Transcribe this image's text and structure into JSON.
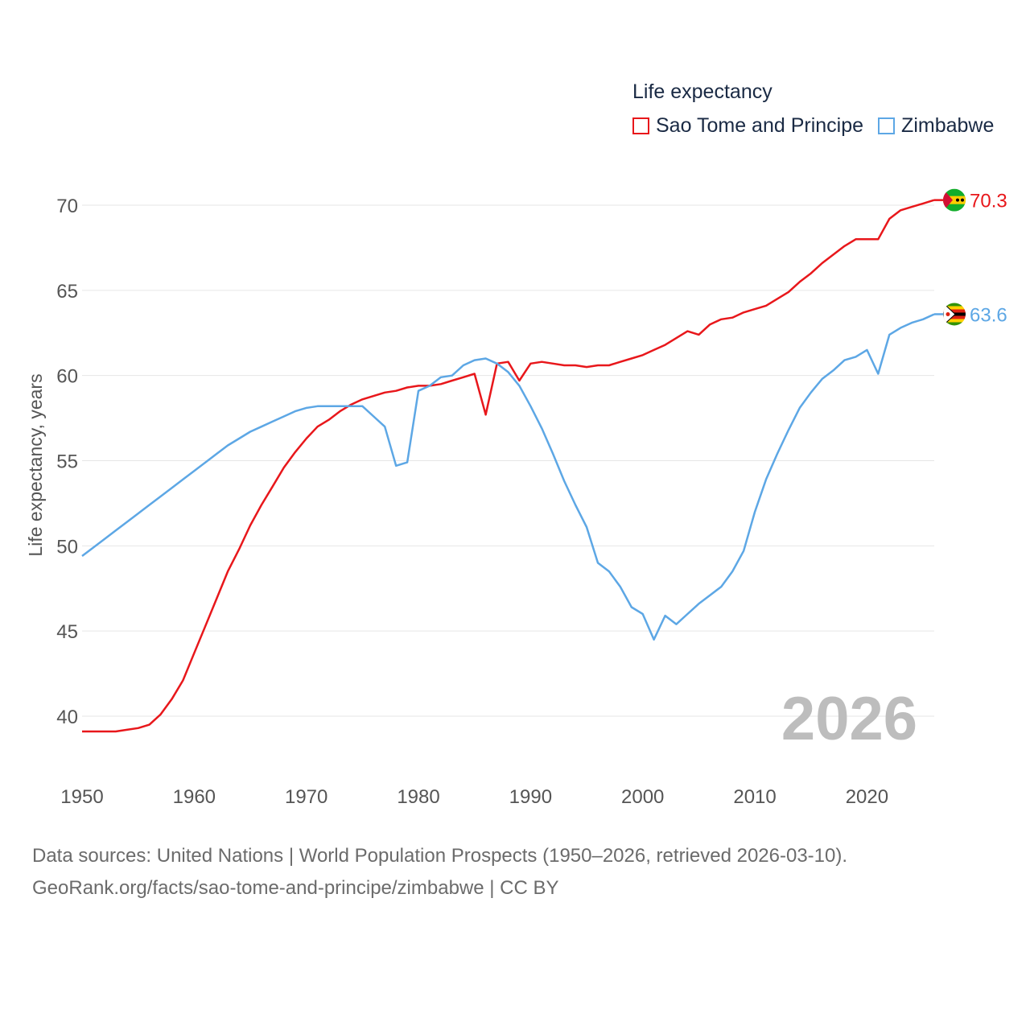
{
  "legend": {
    "title": "Life expectancy",
    "items": [
      {
        "label": "Sao Tome and Principe",
        "color": "#e8171b"
      },
      {
        "label": "Zimbabwe",
        "color": "#5da7e5"
      }
    ]
  },
  "source": {
    "line1": "Data sources: United Nations | World Population Prospects (1950–2026, retrieved 2026-03-10).",
    "line2": "GeoRank.org/facts/sao-tome-and-principe/zimbabwe | CC BY"
  },
  "chart_data": {
    "type": "line",
    "title": "Life expectancy",
    "xlabel": "",
    "ylabel": "Life expectancy, years",
    "year_label": "2026",
    "xlim": [
      1950,
      2026
    ],
    "ylim": [
      37.5,
      72
    ],
    "x_ticks": [
      1950,
      1960,
      1970,
      1980,
      1990,
      2000,
      2010,
      2020
    ],
    "y_ticks": [
      40,
      45,
      50,
      55,
      60,
      65,
      70
    ],
    "grid": true,
    "series": [
      {
        "name": "Sao Tome and Principe",
        "color": "#e8171b",
        "end_label": "70.3",
        "x": [
          1950,
          1951,
          1952,
          1953,
          1954,
          1955,
          1956,
          1957,
          1958,
          1959,
          1960,
          1961,
          1962,
          1963,
          1964,
          1965,
          1966,
          1967,
          1968,
          1969,
          1970,
          1971,
          1972,
          1973,
          1974,
          1975,
          1976,
          1977,
          1978,
          1979,
          1980,
          1981,
          1982,
          1983,
          1984,
          1985,
          1986,
          1987,
          1988,
          1989,
          1990,
          1991,
          1992,
          1993,
          1994,
          1995,
          1996,
          1997,
          1998,
          1999,
          2000,
          2001,
          2002,
          2003,
          2004,
          2005,
          2006,
          2007,
          2008,
          2009,
          2010,
          2011,
          2012,
          2013,
          2014,
          2015,
          2016,
          2017,
          2018,
          2019,
          2020,
          2021,
          2022,
          2023,
          2024,
          2025,
          2026
        ],
        "values": [
          39.1,
          39.1,
          39.1,
          39.1,
          39.2,
          39.3,
          39.5,
          40.1,
          41.0,
          42.1,
          43.7,
          45.3,
          46.9,
          48.5,
          49.8,
          51.2,
          52.4,
          53.5,
          54.6,
          55.5,
          56.3,
          57.0,
          57.4,
          57.9,
          58.3,
          58.6,
          58.8,
          59.0,
          59.1,
          59.3,
          59.4,
          59.4,
          59.5,
          59.7,
          59.9,
          60.1,
          57.7,
          60.7,
          60.8,
          59.7,
          60.7,
          60.8,
          60.7,
          60.6,
          60.6,
          60.5,
          60.6,
          60.6,
          60.8,
          61.0,
          61.2,
          61.5,
          61.8,
          62.2,
          62.6,
          62.4,
          63.0,
          63.3,
          63.4,
          63.7,
          63.9,
          64.1,
          64.5,
          64.9,
          65.5,
          66.0,
          66.6,
          67.1,
          67.6,
          68.0,
          68.0,
          68.0,
          69.2,
          69.7,
          69.9,
          70.1,
          70.3
        ]
      },
      {
        "name": "Zimbabwe",
        "color": "#5da7e5",
        "end_label": "63.6",
        "x": [
          1950,
          1951,
          1952,
          1953,
          1954,
          1955,
          1956,
          1957,
          1958,
          1959,
          1960,
          1961,
          1962,
          1963,
          1964,
          1965,
          1966,
          1967,
          1968,
          1969,
          1970,
          1971,
          1972,
          1973,
          1974,
          1975,
          1976,
          1977,
          1978,
          1979,
          1980,
          1981,
          1982,
          1983,
          1984,
          1985,
          1986,
          1987,
          1988,
          1989,
          1990,
          1991,
          1992,
          1993,
          1994,
          1995,
          1996,
          1997,
          1998,
          1999,
          2000,
          2001,
          2002,
          2003,
          2004,
          2005,
          2006,
          2007,
          2008,
          2009,
          2010,
          2011,
          2012,
          2013,
          2014,
          2015,
          2016,
          2017,
          2018,
          2019,
          2020,
          2021,
          2022,
          2023,
          2024,
          2025,
          2026
        ],
        "values": [
          49.4,
          49.9,
          50.4,
          50.9,
          51.4,
          51.9,
          52.4,
          52.9,
          53.4,
          53.9,
          54.4,
          54.9,
          55.4,
          55.9,
          56.3,
          56.7,
          57.0,
          57.3,
          57.6,
          57.9,
          58.1,
          58.2,
          58.2,
          58.2,
          58.2,
          58.2,
          57.6,
          57.0,
          54.7,
          54.9,
          59.1,
          59.4,
          59.9,
          60.0,
          60.6,
          60.9,
          61.0,
          60.7,
          60.2,
          59.4,
          58.2,
          56.9,
          55.4,
          53.8,
          52.4,
          51.1,
          49.0,
          48.5,
          47.6,
          46.4,
          46.0,
          44.5,
          45.9,
          45.4,
          46.0,
          46.6,
          47.1,
          47.6,
          48.5,
          49.7,
          52.0,
          53.9,
          55.4,
          56.8,
          58.1,
          59.0,
          59.8,
          60.3,
          60.9,
          61.1,
          61.5,
          60.1,
          62.4,
          62.8,
          63.1,
          63.3,
          63.6
        ]
      }
    ]
  }
}
